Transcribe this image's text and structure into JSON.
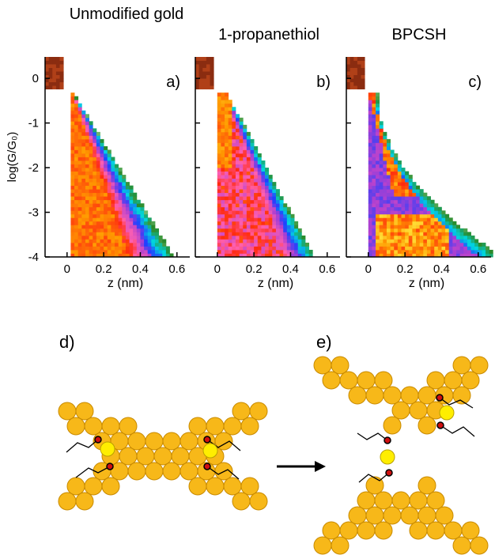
{
  "chart_data": [
    {
      "type": "heatmap",
      "title": "Unmodified gold",
      "panel_label": "a)",
      "x_label": "z (nm)",
      "y_label": "log(G/G₀)",
      "xlim": [
        -0.12,
        0.67
      ],
      "xticks": [
        0,
        0.2,
        0.4,
        0.6
      ],
      "ylim": [
        -4,
        0.48
      ],
      "yticks": [
        -4,
        -3,
        -2,
        -1,
        0
      ]
    },
    {
      "type": "heatmap",
      "title": "1-propanethiol",
      "panel_label": "b)",
      "x_label": "z (nm)",
      "xlim": [
        -0.12,
        0.67
      ],
      "xticks": [
        0,
        0.2,
        0.4,
        0.6
      ],
      "ylim": [
        -4,
        0.48
      ],
      "yticks": [
        -4,
        -3,
        -2,
        -1,
        0
      ]
    },
    {
      "type": "heatmap",
      "title": "BPCSH",
      "panel_label": "c)",
      "x_label": "z (nm)",
      "xlim": [
        -0.12,
        0.67
      ],
      "xticks": [
        0,
        0.2,
        0.4,
        0.6
      ],
      "ylim": [
        -4,
        0.48
      ],
      "yticks": [
        -4,
        -3,
        -2,
        -1,
        0
      ]
    }
  ],
  "schematic": {
    "labels": [
      "d)",
      "e)"
    ]
  }
}
